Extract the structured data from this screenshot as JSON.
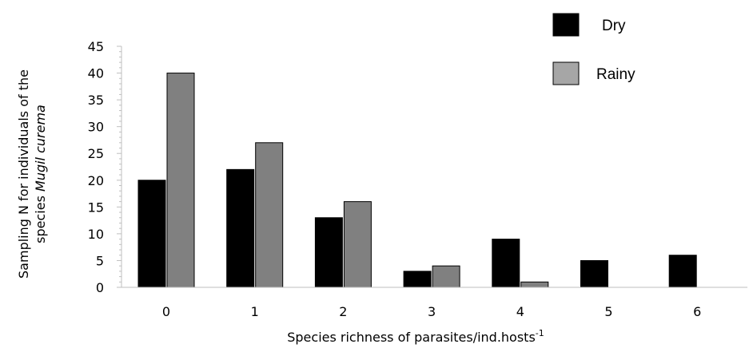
{
  "chart_data": {
    "type": "bar",
    "categories": [
      "0",
      "1",
      "2",
      "3",
      "4",
      "5",
      "6"
    ],
    "series": [
      {
        "name": "Dry",
        "values": [
          20,
          22,
          13,
          3,
          9,
          5,
          6
        ],
        "color": "#000000"
      },
      {
        "name": "Rainy",
        "values": [
          40,
          27,
          16,
          4,
          1,
          0,
          0
        ],
        "color": "#808080"
      }
    ],
    "ylim": [
      0,
      45
    ],
    "yticks": [
      "0",
      "5",
      "10",
      "15",
      "20",
      "25",
      "30",
      "35",
      "40",
      "45"
    ],
    "xlabel": "Species richness of parasites/ind.hosts",
    "xlabel_superscript": "-1",
    "ylabel_line1": "Sampling N for individuals of the",
    "ylabel_line2_prefix": "species ",
    "ylabel_line2_italic": "Mugil curema",
    "legend_position": "top-right",
    "grid": false
  }
}
